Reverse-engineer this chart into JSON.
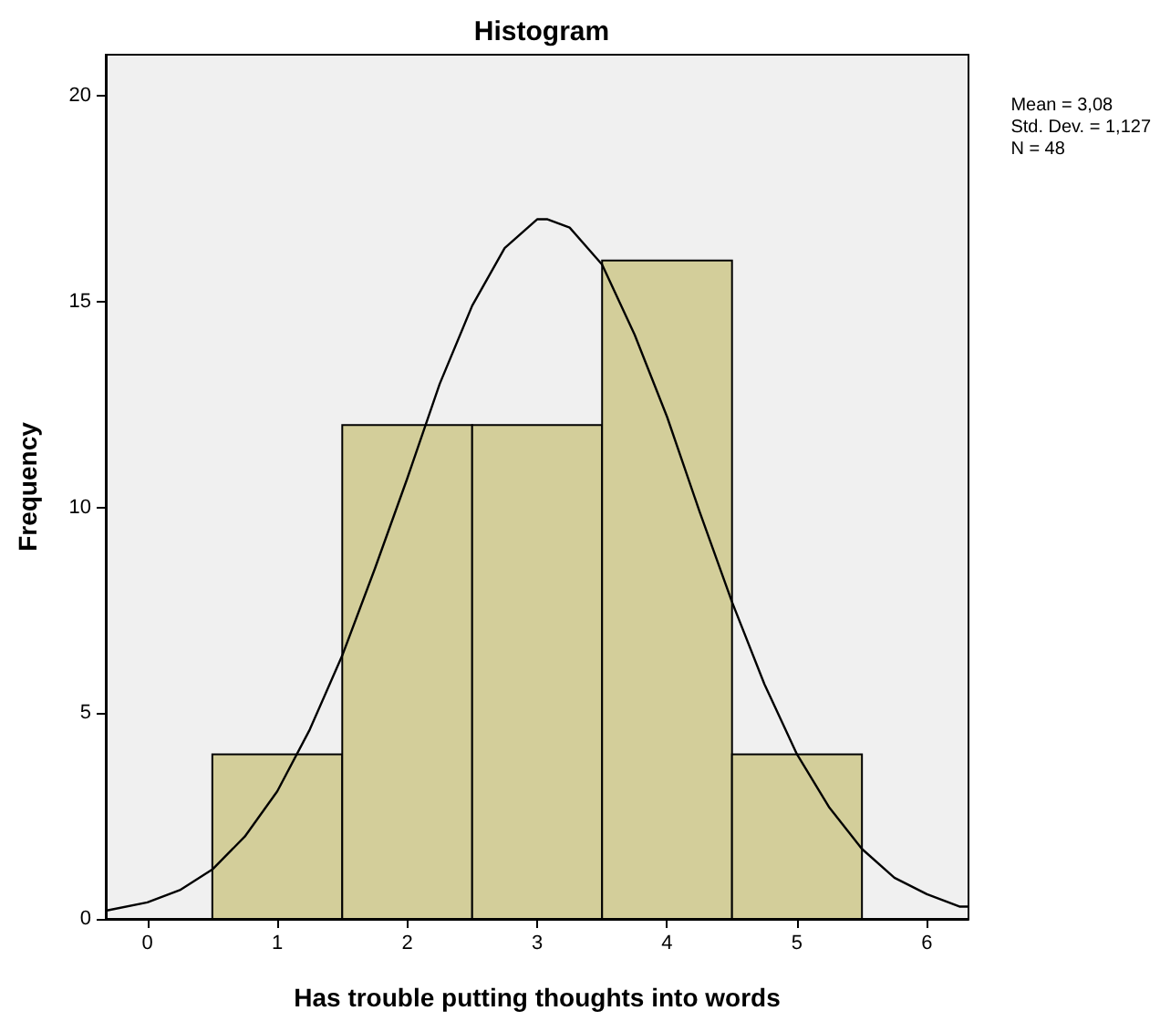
{
  "chart_data": {
    "type": "histogram",
    "title": "Histogram",
    "xlabel": "Has trouble putting thoughts into words",
    "ylabel": "Frequency",
    "annotations": [
      "Mean = 3,08",
      "Std. Dev. = 1,127",
      "N = 48"
    ],
    "series": [
      {
        "color": "#d3ce9a",
        "bins": [
          0.5,
          1.5,
          2.5,
          3.5,
          4.5,
          5.5
        ],
        "values": [
          4,
          12,
          12,
          16,
          4
        ]
      },
      {
        "type": "line",
        "color": "#000000",
        "marker": "none",
        "x": [
          -0.32,
          0,
          0.25,
          0.5,
          0.75,
          1,
          1.25,
          1.5,
          1.75,
          2,
          2.25,
          2.5,
          2.75,
          3,
          3.08,
          3.25,
          3.5,
          3.75,
          4,
          4.25,
          4.5,
          4.75,
          5,
          5.25,
          5.5,
          5.75,
          6,
          6.25,
          6.32
        ],
        "values": [
          0.2,
          0.4,
          0.7,
          1.2,
          2.0,
          3.1,
          4.6,
          6.4,
          8.5,
          10.7,
          13.0,
          14.9,
          16.3,
          17.0,
          17.0,
          16.8,
          15.9,
          14.2,
          12.2,
          9.9,
          7.7,
          5.7,
          4.0,
          2.7,
          1.7,
          1.0,
          0.6,
          0.3,
          0.3
        ]
      }
    ],
    "xlim": [
      -0.32,
      6.32
    ],
    "xticks": [
      0,
      1,
      2,
      3,
      4,
      5,
      6
    ],
    "ylim": [
      0,
      21
    ],
    "yticks": [
      0,
      5,
      10,
      15,
      20
    ],
    "grid": false
  }
}
